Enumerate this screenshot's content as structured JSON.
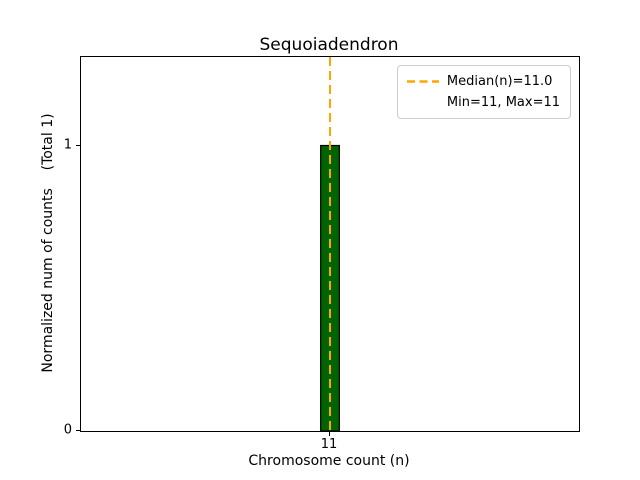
{
  "chart_data": {
    "type": "bar",
    "title": "Sequoiadendron",
    "xlabel": "Chromosome count (n)",
    "ylabel": "Normalized num of counts    (Total 1)",
    "categories": [
      11
    ],
    "values": [
      1
    ],
    "bars": [
      {
        "x": 11,
        "height": 1,
        "width": 0.075
      }
    ],
    "xlim": [
      10,
      12
    ],
    "ylim": [
      0,
      1.31
    ],
    "xticks": [
      11
    ],
    "yticks": [
      0,
      1
    ],
    "grid": false,
    "bar_color": "#006400",
    "bar_edge_color": "#000000",
    "median_line": {
      "x": 11,
      "value_label": "11.0",
      "color": "#FFA500",
      "style": "dashed"
    },
    "legend": {
      "position": "upper right",
      "entries": [
        {
          "handle": "dashed-line",
          "color": "#FFA500",
          "label": "Median(n)=11.0"
        },
        {
          "handle": "none",
          "color": "",
          "label": "Min=11, Max=11"
        }
      ]
    }
  }
}
